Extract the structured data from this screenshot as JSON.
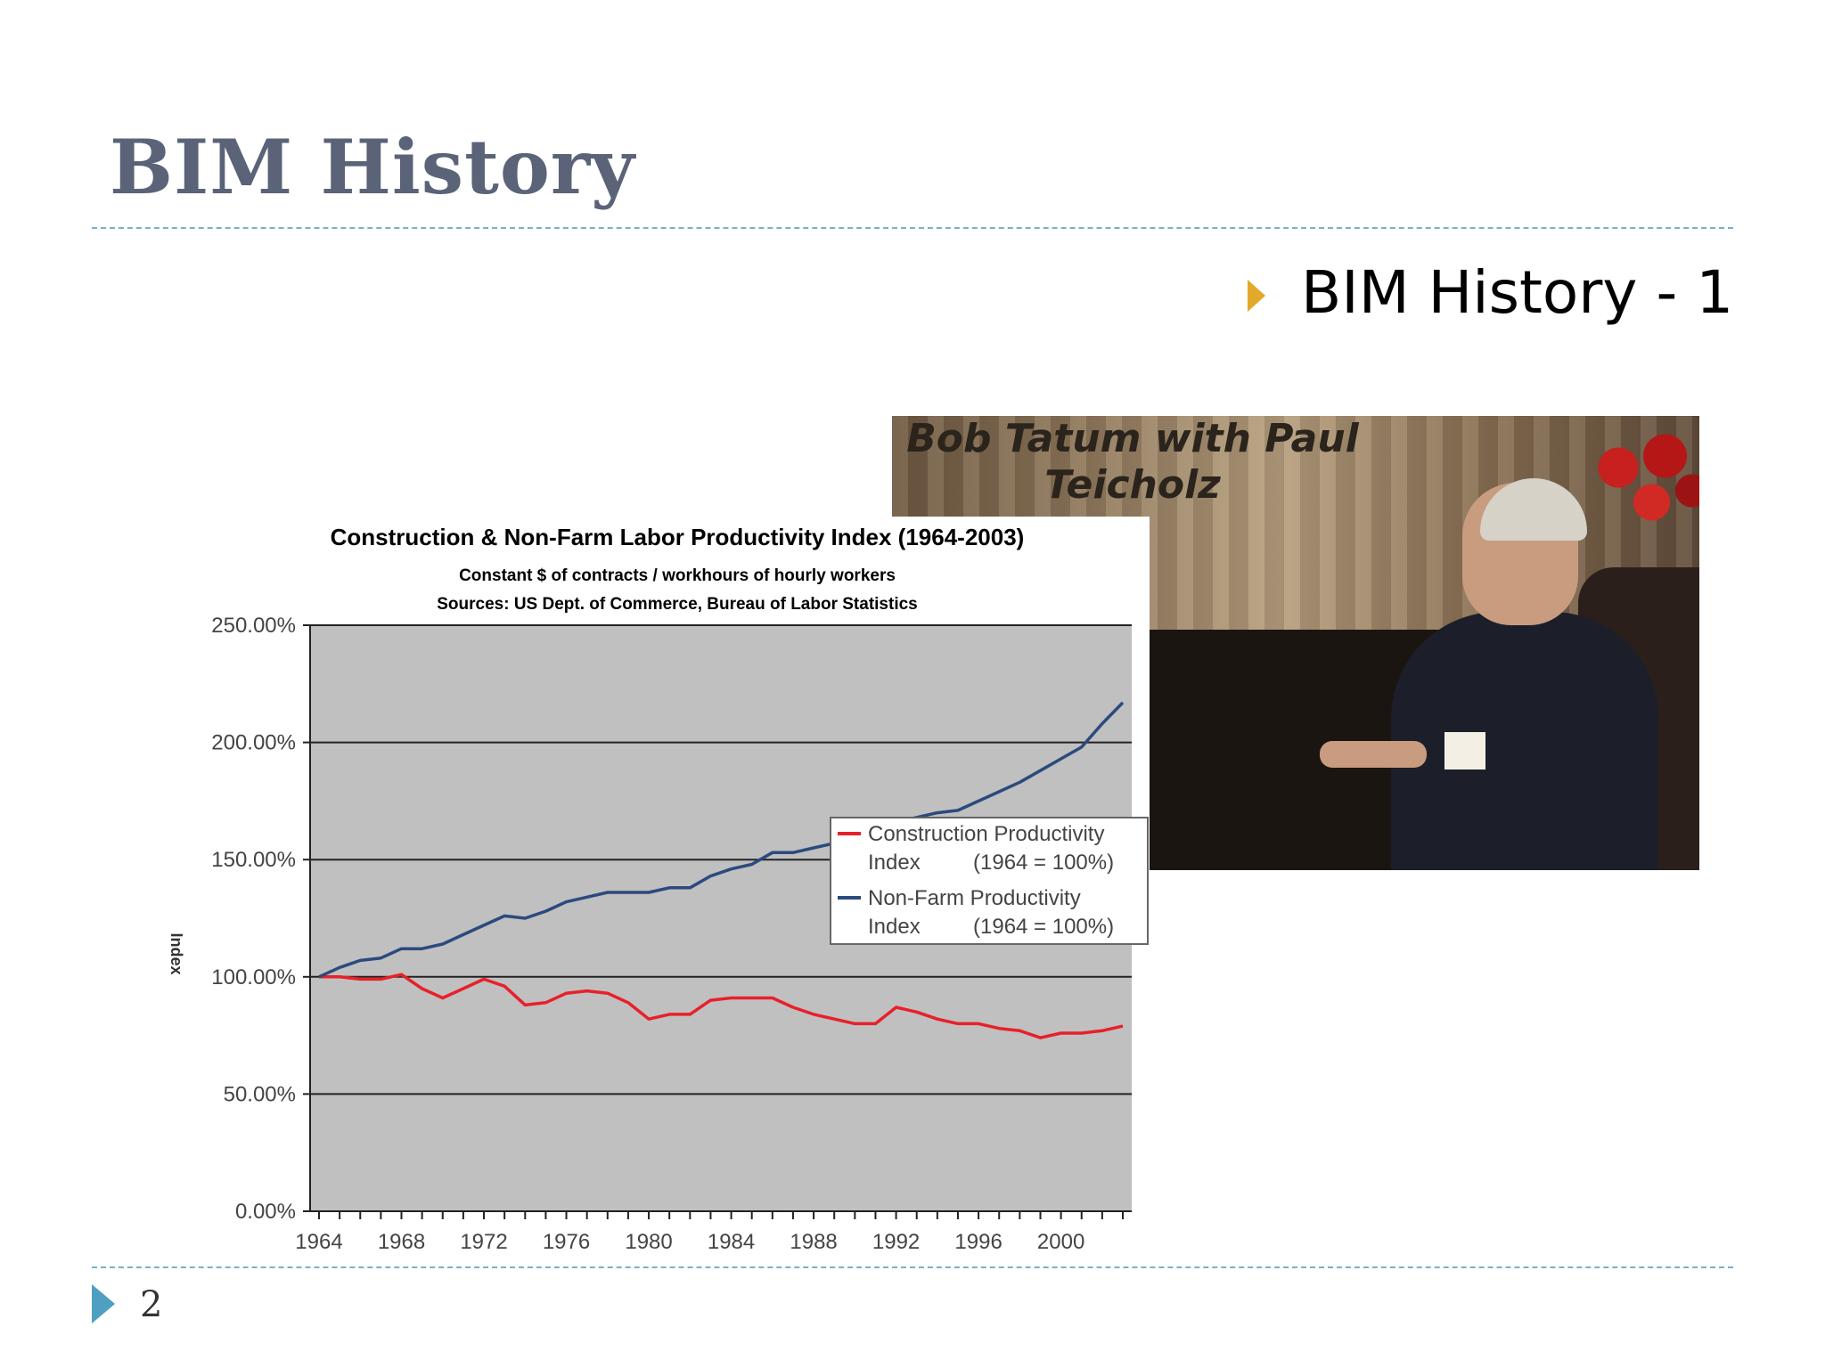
{
  "slide": {
    "title": "BIM History",
    "bullet": "BIM History - 1",
    "page_number": "2",
    "colors": {
      "title": "#5a6378",
      "rule": "#79b1c7",
      "bullet": "#e2a92a",
      "footer_icon": "#4f9fc0"
    },
    "icons": {
      "bullet": "triangle-right-icon",
      "footer": "triangle-right-icon"
    }
  },
  "photo": {
    "caption_line1": "Bob Tatum with Paul",
    "caption_line2": "Teicholz"
  },
  "chart_data": {
    "type": "line",
    "title": "Construction & Non-Farm Labor Productivity Index (1964-2003)",
    "subtitle_line1": "Constant $ of contracts / workhours of hourly workers",
    "subtitle_line2": "Sources: US Dept. of Commerce, Bureau of Labor Statistics",
    "ylabel": "Index",
    "xlabel": "",
    "ylim": [
      0,
      250
    ],
    "xlim": [
      1964,
      2003
    ],
    "y_ticks": [
      "0.00%",
      "50.00%",
      "100.00%",
      "150.00%",
      "200.00%",
      "250.00%"
    ],
    "y_tick_values": [
      0,
      50,
      100,
      150,
      200,
      250
    ],
    "x_ticks": [
      "1964",
      "1968",
      "1972",
      "1976",
      "1980",
      "1984",
      "1988",
      "1992",
      "1996",
      "2000"
    ],
    "x_tick_values": [
      1964,
      1968,
      1972,
      1976,
      1980,
      1984,
      1988,
      1992,
      1996,
      2000
    ],
    "grid": true,
    "plot_background": "#c0c0c0",
    "legend_position": "center-right",
    "legend": [
      {
        "line1": "Construction Productivity",
        "line2a": "Index",
        "line2b": "(1964 = 100%)",
        "color": "#e8202a"
      },
      {
        "line1": "Non-Farm Productivity",
        "line2a": "Index",
        "line2b": "(1964 = 100%)",
        "color": "#2b4a7e"
      }
    ],
    "x": [
      1964,
      1965,
      1966,
      1967,
      1968,
      1969,
      1970,
      1971,
      1972,
      1973,
      1974,
      1975,
      1976,
      1977,
      1978,
      1979,
      1980,
      1981,
      1982,
      1983,
      1984,
      1985,
      1986,
      1987,
      1988,
      1989,
      1990,
      1991,
      1992,
      1993,
      1994,
      1995,
      1996,
      1997,
      1998,
      1999,
      2000,
      2001,
      2002,
      2003
    ],
    "series": [
      {
        "name": "Construction Productivity Index (1964 = 100%)",
        "color": "#e8202a",
        "values": [
          100,
          100,
          99,
          99,
          101,
          95,
          91,
          95,
          99,
          96,
          88,
          89,
          93,
          94,
          93,
          89,
          82,
          84,
          84,
          90,
          91,
          91,
          91,
          87,
          84,
          82,
          80,
          80,
          87,
          85,
          82,
          80,
          80,
          78,
          77,
          74,
          76,
          76,
          77,
          79
        ]
      },
      {
        "name": "Non-Farm Productivity Index (1964 = 100%)",
        "color": "#2b4a7e",
        "values": [
          100,
          104,
          107,
          108,
          112,
          112,
          114,
          118,
          122,
          126,
          125,
          128,
          132,
          134,
          136,
          136,
          136,
          138,
          138,
          143,
          146,
          148,
          153,
          153,
          155,
          157,
          160,
          162,
          166,
          168,
          170,
          171,
          175,
          179,
          183,
          188,
          193,
          198,
          208,
          217
        ]
      }
    ]
  }
}
